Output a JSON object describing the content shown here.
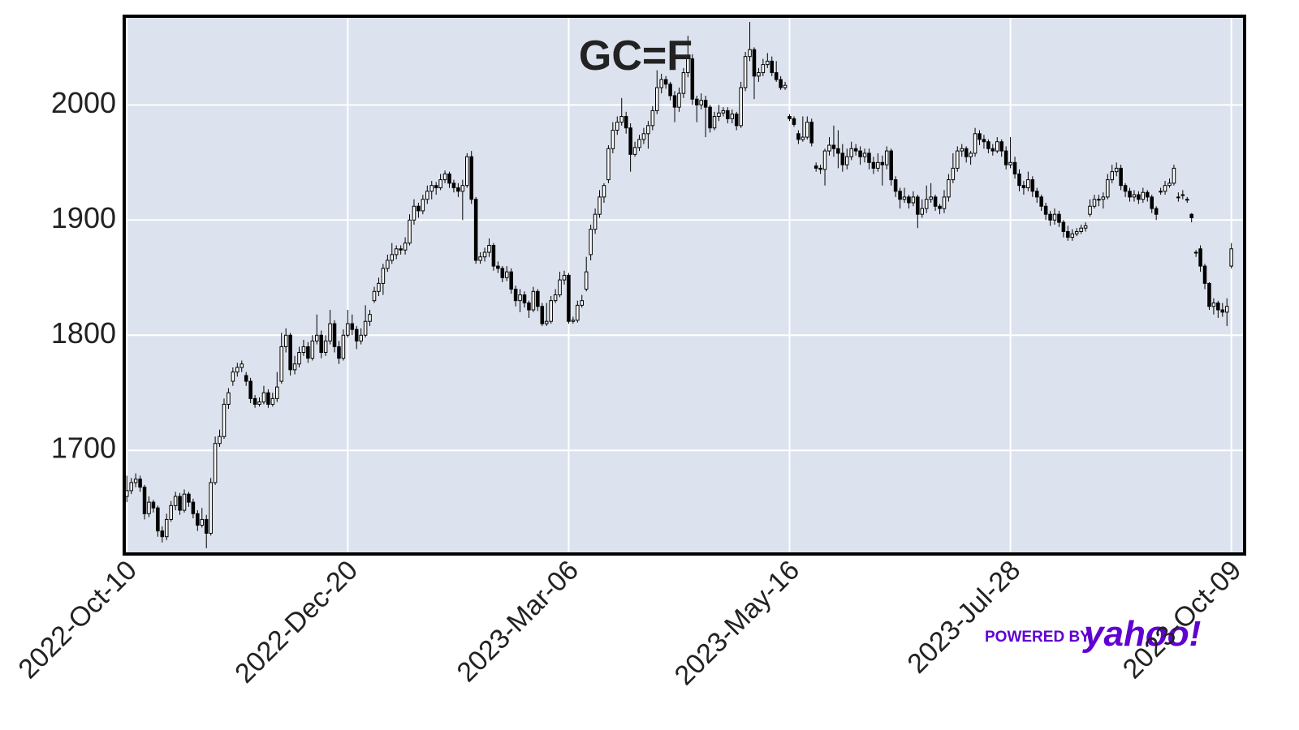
{
  "chart_data": {
    "type": "candlestick",
    "title": "GC=F",
    "xlim": [
      -0.6,
      253
    ],
    "xticks": [
      {
        "value": 0,
        "label": "2022-Oct-10"
      },
      {
        "value": 50,
        "label": "2022-Dec-20"
      },
      {
        "value": 100,
        "label": "2023-Mar-06"
      },
      {
        "value": 150,
        "label": "2023-May-16"
      },
      {
        "value": 200,
        "label": "2023-Jul-28"
      },
      {
        "value": 250,
        "label": "2023-Oct-09"
      }
    ],
    "ylim": [
      1610,
      2077
    ],
    "yticks": [
      1700,
      1800,
      1900,
      2000
    ],
    "grid": true,
    "up_color": "#ffffff",
    "down_color": "#000000",
    "edge_color": "#000000",
    "background": "#dce2ee",
    "watermark": {
      "prefix": "POWERED BY",
      "brand": "yahoo!"
    },
    "ohlc": [
      [
        1660,
        1678,
        1655,
        1665
      ],
      [
        1665,
        1676,
        1662,
        1672
      ],
      [
        1672,
        1680,
        1668,
        1675
      ],
      [
        1675,
        1678,
        1664,
        1668
      ],
      [
        1668,
        1670,
        1640,
        1645
      ],
      [
        1645,
        1660,
        1642,
        1655
      ],
      [
        1655,
        1657,
        1646,
        1650
      ],
      [
        1650,
        1652,
        1625,
        1630
      ],
      [
        1630,
        1634,
        1620,
        1625
      ],
      [
        1625,
        1645,
        1622,
        1640
      ],
      [
        1640,
        1656,
        1638,
        1652
      ],
      [
        1652,
        1664,
        1648,
        1660
      ],
      [
        1660,
        1663,
        1644,
        1648
      ],
      [
        1648,
        1666,
        1646,
        1662
      ],
      [
        1662,
        1664,
        1651,
        1655
      ],
      [
        1655,
        1658,
        1641,
        1645
      ],
      [
        1645,
        1648,
        1630,
        1635
      ],
      [
        1635,
        1650,
        1633,
        1640
      ],
      [
        1640,
        1644,
        1615,
        1628
      ],
      [
        1628,
        1676,
        1626,
        1672
      ],
      [
        1672,
        1712,
        1670,
        1706
      ],
      [
        1706,
        1718,
        1703,
        1712
      ],
      [
        1712,
        1745,
        1710,
        1740
      ],
      [
        1740,
        1754,
        1736,
        1750
      ],
      [
        1760,
        1772,
        1756,
        1768
      ],
      [
        1768,
        1776,
        1764,
        1772
      ],
      [
        1772,
        1778,
        1768,
        1775
      ],
      [
        1765,
        1768,
        1756,
        1760
      ],
      [
        1760,
        1763,
        1741,
        1745
      ],
      [
        1745,
        1748,
        1737,
        1740
      ],
      [
        1740,
        1746,
        1738,
        1742
      ],
      [
        1742,
        1756,
        1740,
        1750
      ],
      [
        1750,
        1753,
        1737,
        1740
      ],
      [
        1740,
        1750,
        1738,
        1745
      ],
      [
        1745,
        1768,
        1742,
        1755
      ],
      [
        1760,
        1802,
        1758,
        1790
      ],
      [
        1790,
        1806,
        1785,
        1800
      ],
      [
        1800,
        1802,
        1765,
        1770
      ],
      [
        1770,
        1782,
        1766,
        1775
      ],
      [
        1775,
        1790,
        1772,
        1785
      ],
      [
        1785,
        1796,
        1782,
        1790
      ],
      [
        1790,
        1794,
        1776,
        1780
      ],
      [
        1780,
        1800,
        1778,
        1795
      ],
      [
        1795,
        1818,
        1792,
        1800
      ],
      [
        1800,
        1804,
        1780,
        1785
      ],
      [
        1785,
        1800,
        1782,
        1795
      ],
      [
        1795,
        1822,
        1792,
        1810
      ],
      [
        1810,
        1813,
        1785,
        1790
      ],
      [
        1790,
        1795,
        1775,
        1780
      ],
      [
        1780,
        1805,
        1778,
        1800
      ],
      [
        1800,
        1822,
        1798,
        1810
      ],
      [
        1810,
        1818,
        1800,
        1805
      ],
      [
        1805,
        1808,
        1788,
        1795
      ],
      [
        1795,
        1806,
        1792,
        1800
      ],
      [
        1800,
        1826,
        1798,
        1812
      ],
      [
        1812,
        1822,
        1808,
        1818
      ],
      [
        1830,
        1842,
        1828,
        1838
      ],
      [
        1838,
        1850,
        1834,
        1845
      ],
      [
        1845,
        1862,
        1835,
        1858
      ],
      [
        1858,
        1870,
        1855,
        1865
      ],
      [
        1865,
        1880,
        1862,
        1870
      ],
      [
        1870,
        1878,
        1866,
        1875
      ],
      [
        1875,
        1878,
        1870,
        1874
      ],
      [
        1874,
        1885,
        1870,
        1880
      ],
      [
        1880,
        1905,
        1878,
        1900
      ],
      [
        1900,
        1918,
        1896,
        1912
      ],
      [
        1912,
        1915,
        1902,
        1908
      ],
      [
        1908,
        1922,
        1905,
        1918
      ],
      [
        1918,
        1930,
        1914,
        1925
      ],
      [
        1925,
        1934,
        1918,
        1930
      ],
      [
        1930,
        1933,
        1922,
        1928
      ],
      [
        1928,
        1940,
        1926,
        1935
      ],
      [
        1935,
        1943,
        1932,
        1940
      ],
      [
        1940,
        1942,
        1928,
        1932
      ],
      [
        1932,
        1935,
        1924,
        1928
      ],
      [
        1928,
        1932,
        1920,
        1925
      ],
      [
        1925,
        1935,
        1900,
        1930
      ],
      [
        1930,
        1958,
        1928,
        1955
      ],
      [
        1955,
        1960,
        1914,
        1918
      ],
      [
        1918,
        1920,
        1862,
        1865
      ],
      [
        1865,
        1872,
        1862,
        1868
      ],
      [
        1868,
        1876,
        1864,
        1872
      ],
      [
        1872,
        1884,
        1868,
        1878
      ],
      [
        1878,
        1880,
        1856,
        1860
      ],
      [
        1860,
        1864,
        1854,
        1858
      ],
      [
        1858,
        1860,
        1846,
        1850
      ],
      [
        1850,
        1860,
        1847,
        1855
      ],
      [
        1855,
        1858,
        1836,
        1840
      ],
      [
        1840,
        1843,
        1825,
        1830
      ],
      [
        1830,
        1840,
        1820,
        1835
      ],
      [
        1835,
        1838,
        1824,
        1828
      ],
      [
        1828,
        1830,
        1815,
        1822
      ],
      [
        1822,
        1842,
        1820,
        1838
      ],
      [
        1838,
        1840,
        1821,
        1825
      ],
      [
        1825,
        1828,
        1808,
        1810
      ],
      [
        1810,
        1828,
        1808,
        1812
      ],
      [
        1812,
        1834,
        1810,
        1830
      ],
      [
        1830,
        1840,
        1828,
        1835
      ],
      [
        1835,
        1855,
        1833,
        1848
      ],
      [
        1848,
        1856,
        1844,
        1852
      ],
      [
        1852,
        1854,
        1810,
        1812
      ],
      [
        1812,
        1816,
        1810,
        1813
      ],
      [
        1813,
        1830,
        1811,
        1826
      ],
      [
        1826,
        1835,
        1824,
        1830
      ],
      [
        1840,
        1868,
        1838,
        1855
      ],
      [
        1870,
        1896,
        1865,
        1892
      ],
      [
        1892,
        1910,
        1888,
        1905
      ],
      [
        1905,
        1926,
        1902,
        1920
      ],
      [
        1920,
        1932,
        1915,
        1930
      ],
      [
        1935,
        1965,
        1932,
        1962
      ],
      [
        1962,
        1985,
        1958,
        1978
      ],
      [
        1978,
        1990,
        1974,
        1985
      ],
      [
        1985,
        2006,
        1982,
        1990
      ],
      [
        1990,
        1994,
        1975,
        1980
      ],
      [
        1980,
        1984,
        1942,
        1957
      ],
      [
        1957,
        1968,
        1955,
        1963
      ],
      [
        1963,
        1974,
        1960,
        1970
      ],
      [
        1970,
        1980,
        1966,
        1975
      ],
      [
        1975,
        1986,
        1962,
        1982
      ],
      [
        1982,
        1999,
        1978,
        1995
      ],
      [
        1995,
        2030,
        1992,
        2015
      ],
      [
        2015,
        2027,
        2010,
        2022
      ],
      [
        2022,
        2025,
        2014,
        2018
      ],
      [
        2018,
        2020,
        2004,
        2008
      ],
      [
        2008,
        2012,
        1985,
        1998
      ],
      [
        1998,
        2015,
        1994,
        2010
      ],
      [
        2010,
        2032,
        2006,
        2028
      ],
      [
        2028,
        2060,
        2024,
        2040
      ],
      [
        2040,
        2044,
        2000,
        2005
      ],
      [
        2005,
        2008,
        1985,
        2000
      ],
      [
        2000,
        2010,
        1996,
        2004
      ],
      [
        2004,
        2008,
        1972,
        1998
      ],
      [
        1998,
        2000,
        1976,
        1980
      ],
      [
        1980,
        1994,
        1978,
        1990
      ],
      [
        1990,
        2000,
        1986,
        1993
      ],
      [
        1993,
        1998,
        1990,
        1995
      ],
      [
        1995,
        1998,
        1984,
        1988
      ],
      [
        1988,
        1996,
        1984,
        1992
      ],
      [
        1992,
        1994,
        1978,
        1982
      ],
      [
        1982,
        2020,
        1980,
        2015
      ],
      [
        2015,
        2046,
        2012,
        2042
      ],
      [
        2042,
        2072,
        2038,
        2048
      ],
      [
        2048,
        2050,
        2005,
        2025
      ],
      [
        2025,
        2032,
        2020,
        2028
      ],
      [
        2028,
        2040,
        2025,
        2035
      ],
      [
        2035,
        2045,
        2032,
        2038
      ],
      [
        2038,
        2042,
        2025,
        2028
      ],
      [
        2028,
        2038,
        2020,
        2022
      ],
      [
        2022,
        2025,
        2013,
        2015
      ],
      [
        2015,
        2020,
        2013,
        2017
      ],
      [
        1990,
        1992,
        1986,
        1988
      ],
      [
        1988,
        1990,
        1981,
        1983
      ],
      [
        1975,
        1978,
        1966,
        1970
      ],
      [
        1970,
        1990,
        1968,
        1972
      ],
      [
        1972,
        1990,
        1970,
        1985
      ],
      [
        1985,
        1988,
        1964,
        1967
      ],
      [
        1947,
        1950,
        1942,
        1945
      ],
      [
        1945,
        1948,
        1940,
        1944
      ],
      [
        1944,
        1962,
        1930,
        1960
      ],
      [
        1960,
        1972,
        1956,
        1965
      ],
      [
        1965,
        1982,
        1955,
        1962
      ],
      [
        1962,
        1978,
        1945,
        1958
      ],
      [
        1958,
        1966,
        1942,
        1948
      ],
      [
        1948,
        1962,
        1944,
        1955
      ],
      [
        1955,
        1968,
        1952,
        1962
      ],
      [
        1962,
        1966,
        1956,
        1960
      ],
      [
        1960,
        1964,
        1948,
        1955
      ],
      [
        1955,
        1962,
        1950,
        1958
      ],
      [
        1958,
        1962,
        1944,
        1950
      ],
      [
        1950,
        1955,
        1940,
        1945
      ],
      [
        1945,
        1958,
        1942,
        1950
      ],
      [
        1950,
        1956,
        1930,
        1948
      ],
      [
        1948,
        1964,
        1944,
        1960
      ],
      [
        1960,
        1962,
        1930,
        1935
      ],
      [
        1935,
        1938,
        1920,
        1925
      ],
      [
        1925,
        1928,
        1910,
        1918
      ],
      [
        1918,
        1928,
        1915,
        1920
      ],
      [
        1920,
        1922,
        1910,
        1915
      ],
      [
        1915,
        1925,
        1912,
        1920
      ],
      [
        1920,
        1922,
        1893,
        1905
      ],
      [
        1905,
        1918,
        1902,
        1910
      ],
      [
        1910,
        1930,
        1906,
        1918
      ],
      [
        1918,
        1932,
        1915,
        1920
      ],
      [
        1920,
        1922,
        1908,
        1912
      ],
      [
        1912,
        1914,
        1905,
        1910
      ],
      [
        1910,
        1926,
        1906,
        1920
      ],
      [
        1920,
        1940,
        1916,
        1935
      ],
      [
        1935,
        1958,
        1932,
        1945
      ],
      [
        1945,
        1964,
        1942,
        1960
      ],
      [
        1960,
        1966,
        1955,
        1962
      ],
      [
        1962,
        1964,
        1950,
        1955
      ],
      [
        1955,
        1960,
        1948,
        1958
      ],
      [
        1958,
        1980,
        1955,
        1975
      ],
      [
        1975,
        1978,
        1965,
        1970
      ],
      [
        1970,
        1974,
        1962,
        1968
      ],
      [
        1968,
        1970,
        1958,
        1962
      ],
      [
        1962,
        1966,
        1956,
        1960
      ],
      [
        1960,
        1972,
        1958,
        1968
      ],
      [
        1968,
        1970,
        1955,
        1960
      ],
      [
        1960,
        1964,
        1944,
        1948
      ],
      [
        1948,
        1972,
        1945,
        1950
      ],
      [
        1950,
        1955,
        1936,
        1940
      ],
      [
        1940,
        1944,
        1925,
        1930
      ],
      [
        1930,
        1934,
        1922,
        1928
      ],
      [
        1928,
        1942,
        1925,
        1935
      ],
      [
        1935,
        1938,
        1920,
        1925
      ],
      [
        1925,
        1928,
        1915,
        1920
      ],
      [
        1920,
        1922,
        1908,
        1912
      ],
      [
        1912,
        1915,
        1900,
        1905
      ],
      [
        1905,
        1908,
        1895,
        1900
      ],
      [
        1900,
        1910,
        1896,
        1905
      ],
      [
        1905,
        1908,
        1894,
        1898
      ],
      [
        1898,
        1900,
        1885,
        1890
      ],
      [
        1890,
        1895,
        1882,
        1885
      ],
      [
        1885,
        1892,
        1882,
        1888
      ],
      [
        1888,
        1893,
        1886,
        1890
      ],
      [
        1890,
        1896,
        1888,
        1893
      ],
      [
        1893,
        1898,
        1890,
        1895
      ],
      [
        1905,
        1918,
        1903,
        1912
      ],
      [
        1912,
        1922,
        1910,
        1918
      ],
      [
        1918,
        1922,
        1912,
        1918
      ],
      [
        1918,
        1924,
        1910,
        1920
      ],
      [
        1920,
        1940,
        1918,
        1935
      ],
      [
        1935,
        1948,
        1932,
        1942
      ],
      [
        1942,
        1950,
        1938,
        1945
      ],
      [
        1945,
        1948,
        1926,
        1930
      ],
      [
        1930,
        1932,
        1920,
        1925
      ],
      [
        1925,
        1928,
        1916,
        1920
      ],
      [
        1920,
        1926,
        1916,
        1922
      ],
      [
        1922,
        1925,
        1914,
        1918
      ],
      [
        1918,
        1928,
        1915,
        1924
      ],
      [
        1924,
        1926,
        1916,
        1920
      ],
      [
        1920,
        1922,
        1906,
        1910
      ],
      [
        1910,
        1912,
        1900,
        1905
      ],
      [
        1925,
        1928,
        1922,
        1925
      ],
      [
        1925,
        1934,
        1922,
        1930
      ],
      [
        1930,
        1936,
        1928,
        1932
      ],
      [
        1932,
        1948,
        1930,
        1945
      ],
      [
        1920,
        1924,
        1916,
        1920
      ],
      [
        1922,
        1926,
        1918,
        1922
      ],
      [
        1918,
        1920,
        1915,
        1918
      ],
      [
        1905,
        1906,
        1898,
        1902
      ],
      [
        1872,
        1874,
        1868,
        1872
      ],
      [
        1875,
        1878,
        1855,
        1860
      ],
      [
        1860,
        1862,
        1840,
        1845
      ],
      [
        1845,
        1846,
        1822,
        1825
      ],
      [
        1825,
        1832,
        1818,
        1828
      ],
      [
        1828,
        1830,
        1815,
        1822
      ],
      [
        1822,
        1828,
        1816,
        1820
      ],
      [
        1820,
        1832,
        1808,
        1825
      ],
      [
        1860,
        1880,
        1858,
        1875
      ]
    ]
  }
}
